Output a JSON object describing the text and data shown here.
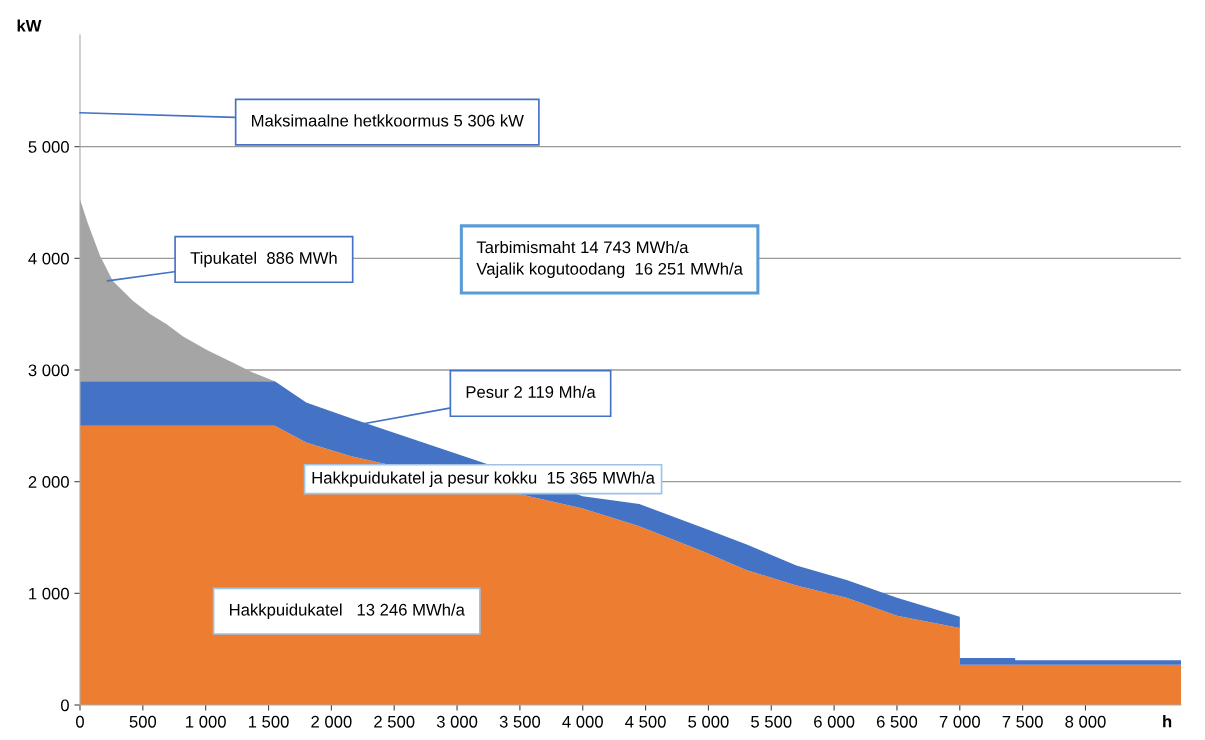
{
  "chart_data": {
    "type": "area",
    "stacked": true,
    "xlabel": "h",
    "ylabel": "kW",
    "x": [
      0,
      60,
      160,
      260,
      420,
      560,
      690,
      820,
      1010,
      1210,
      1370,
      1550,
      1800,
      2150,
      4000,
      4450,
      4950,
      5300,
      5700,
      6100,
      6500,
      7000,
      7001,
      7440,
      7441,
      8760
    ],
    "series": [
      {
        "color": "#ed7d31",
        "values": [
          2500,
          2500,
          2500,
          2500,
          2500,
          2500,
          2500,
          2500,
          2500,
          2500,
          2500,
          2500,
          2350,
          2230,
          1760,
          1600,
          1380,
          1210,
          1070,
          960,
          800,
          690,
          360,
          360,
          360,
          360
        ]
      },
      {
        "color": "#4472c4",
        "values": [
          400,
          400,
          400,
          400,
          400,
          400,
          400,
          400,
          400,
          400,
          400,
          400,
          360,
          340,
          110,
          200,
          210,
          230,
          180,
          160,
          160,
          100,
          60,
          60,
          40,
          40
        ]
      },
      {
        "color": "#a5a5a5",
        "values": [
          1630,
          1420,
          1120,
          900,
          720,
          600,
          510,
          400,
          280,
          170,
          80,
          0,
          0,
          0,
          0,
          0,
          0,
          0,
          0,
          0,
          0,
          0,
          0,
          0,
          0,
          0
        ]
      }
    ],
    "xlim": [
      0,
      8760
    ],
    "ylim": [
      0,
      6000
    ],
    "xticks": [
      0,
      500,
      {
        "value": 1000,
        "label": "1 000"
      },
      {
        "value": 1500,
        "label": "1 500"
      },
      {
        "value": 2000,
        "label": "2 000"
      },
      {
        "value": 2500,
        "label": "2 500"
      },
      {
        "value": 3000,
        "label": "3 000"
      },
      {
        "value": 3500,
        "label": "3 500"
      },
      {
        "value": 4000,
        "label": "4 000"
      },
      {
        "value": 4500,
        "label": "4 500"
      },
      {
        "value": 5000,
        "label": "5 000"
      },
      {
        "value": 5500,
        "label": "5 500"
      },
      {
        "value": 6000,
        "label": "6 000"
      },
      {
        "value": 6500,
        "label": "6 500"
      },
      {
        "value": 7000,
        "label": "7 000"
      },
      {
        "value": 7500,
        "label": "7 500"
      },
      {
        "value": 8000,
        "label": "8 000"
      }
    ],
    "yticks": [
      0,
      {
        "value": 1000,
        "label": "1 000"
      },
      {
        "value": 2000,
        "label": "2 000"
      },
      {
        "value": 3000,
        "label": "3 000"
      },
      {
        "value": 4000,
        "label": "4 000"
      },
      {
        "value": 5000,
        "label": "5 000"
      }
    ],
    "grid": "y",
    "annotations": [
      "Maksimaalne hetkkoormus 5 306 kW",
      "Tipukatel  886 MWh",
      "Tarbimismaht 14 743 MWh/a\nVajalik kogutoodang  16 251 MWh/a",
      "Pesur 2 119 Mh/a",
      "Hakkpuidukatel ja pesur kokku  15 365 MWh/a",
      "Hakkpuidukatel   13 246 MWh/a"
    ]
  }
}
